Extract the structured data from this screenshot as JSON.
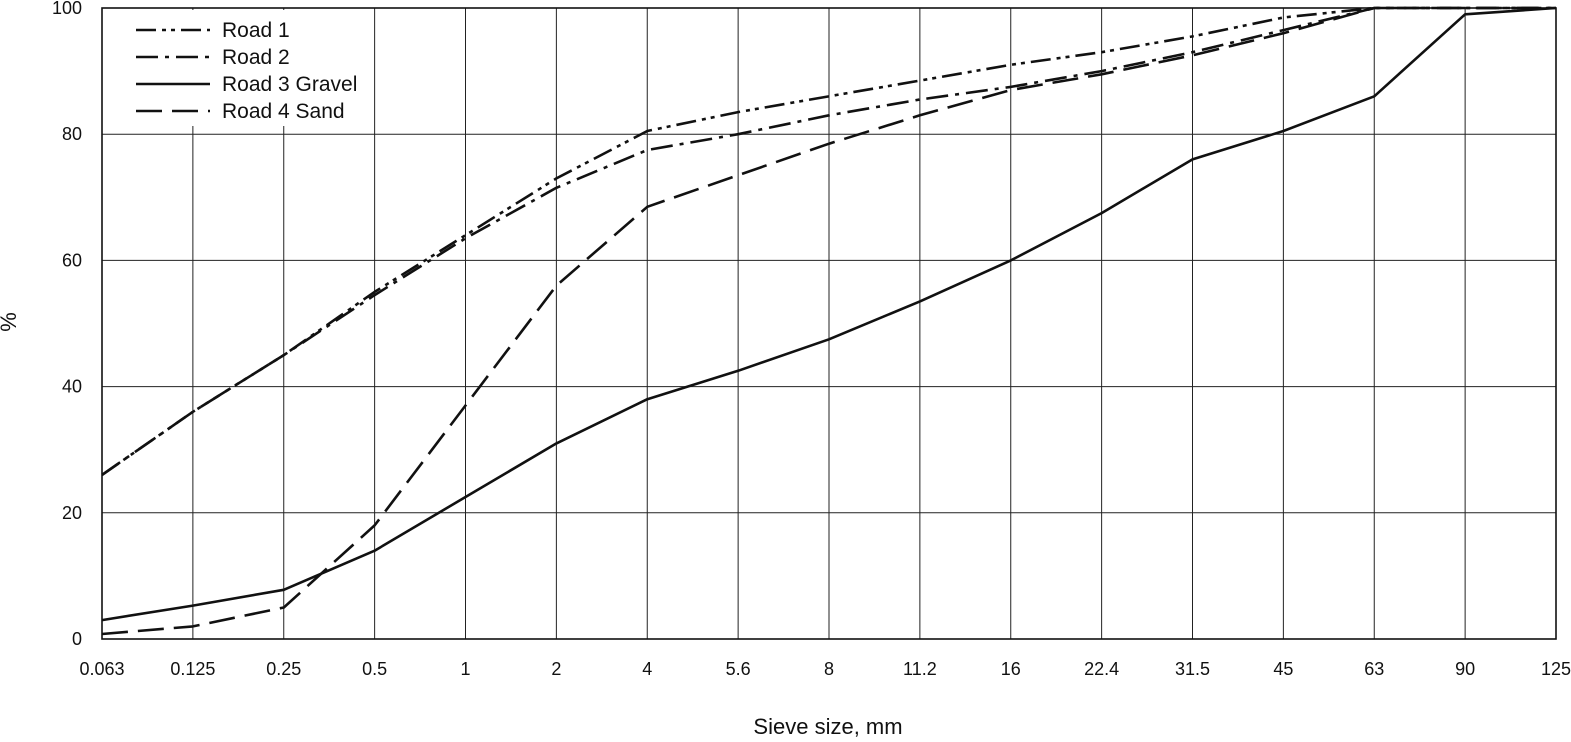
{
  "chart_data": {
    "type": "line",
    "title": "",
    "xlabel": "Sieve size, mm",
    "ylabel": "%",
    "categories": [
      "0.063",
      "0.125",
      "0.25",
      "0.5",
      "1",
      "2",
      "4",
      "5.6",
      "8",
      "11.2",
      "16",
      "22.4",
      "31.5",
      "45",
      "63",
      "90",
      "125"
    ],
    "yticks": [
      "0",
      "20",
      "40",
      "60",
      "80",
      "100"
    ],
    "ylim": [
      0,
      100
    ],
    "grid": true,
    "legend_position": "top-left",
    "series": [
      {
        "name": "Road 1",
        "style": "dash-dot-dot",
        "values": [
          26,
          36,
          45,
          55,
          64,
          73,
          80.5,
          83.5,
          86,
          88.5,
          91,
          93,
          95.5,
          98.5,
          100,
          100,
          100
        ]
      },
      {
        "name": "Road 2",
        "style": "dash-dot",
        "values": [
          26,
          36,
          45,
          54.5,
          63.5,
          71.5,
          77.5,
          80,
          83,
          85.5,
          87.5,
          90,
          93,
          96.5,
          100,
          100,
          100
        ]
      },
      {
        "name": "Road 3 Gravel",
        "style": "solid",
        "values": [
          3,
          5.3,
          7.8,
          14,
          22.5,
          31,
          38,
          42.5,
          47.5,
          53.5,
          60,
          67.5,
          76,
          80.5,
          86,
          99,
          100
        ]
      },
      {
        "name": "Road 4 Sand",
        "style": "dashed",
        "values": [
          0.8,
          2,
          5,
          18,
          37,
          56,
          68.5,
          73.5,
          78.5,
          83,
          87,
          89.5,
          92.5,
          96,
          100,
          100,
          100
        ]
      }
    ]
  }
}
